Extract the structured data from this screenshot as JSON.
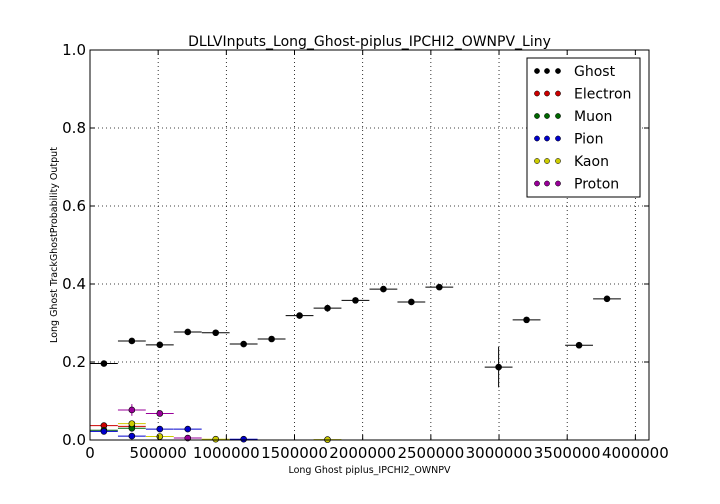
{
  "chart_data": {
    "type": "scatter",
    "title": "DLLVInputs_Long_Ghost-piplus_IPCHI2_OWNPV_Liny",
    "xlabel": "Long Ghost piplus_IPCHI2_OWNPV",
    "ylabel": "Long Ghost TrackGhostProbability Output",
    "xlim": [
      0,
      4100000
    ],
    "ylim": [
      0,
      1.0
    ],
    "xticks": [
      0,
      500000,
      1000000,
      1500000,
      2000000,
      2500000,
      3000000,
      3500000,
      4000000
    ],
    "xtick_labels": [
      "0",
      "500000",
      "1000000",
      "1500000",
      "2000000",
      "2500000",
      "3000000",
      "3500000",
      "4000000"
    ],
    "yticks": [
      0.0,
      0.2,
      0.4,
      0.6,
      0.8,
      1.0
    ],
    "ytick_labels": [
      "0.0",
      "0.2",
      "0.4",
      "0.6",
      "0.8",
      "1.0"
    ],
    "grid": true,
    "legend_position": "top-right",
    "series": [
      {
        "name": "Ghost",
        "color": "#000000",
        "points": [
          {
            "x": 102000,
            "y": 0.196,
            "xerr": 102000,
            "yerr": 0.002
          },
          {
            "x": 307000,
            "y": 0.254,
            "xerr": 102000,
            "yerr": 0.003
          },
          {
            "x": 512000,
            "y": 0.244,
            "xerr": 102000,
            "yerr": 0.004
          },
          {
            "x": 717000,
            "y": 0.277,
            "xerr": 102000,
            "yerr": 0.005
          },
          {
            "x": 922000,
            "y": 0.275,
            "xerr": 102000,
            "yerr": 0.005
          },
          {
            "x": 1127000,
            "y": 0.246,
            "xerr": 102000,
            "yerr": 0.006
          },
          {
            "x": 1332000,
            "y": 0.259,
            "xerr": 102000,
            "yerr": 0.007
          },
          {
            "x": 1537000,
            "y": 0.319,
            "xerr": 102000,
            "yerr": 0.005
          },
          {
            "x": 1742000,
            "y": 0.338,
            "xerr": 102000,
            "yerr": 0.009
          },
          {
            "x": 1947000,
            "y": 0.358,
            "xerr": 102000,
            "yerr": 0.004
          },
          {
            "x": 2152000,
            "y": 0.387,
            "xerr": 102000,
            "yerr": 0.004
          },
          {
            "x": 2357000,
            "y": 0.354,
            "xerr": 102000,
            "yerr": 0.004
          },
          {
            "x": 2562000,
            "y": 0.392,
            "xerr": 102000,
            "yerr": 0.004
          },
          {
            "x": 2997000,
            "y": 0.187,
            "xerr": 102000,
            "yerr": 0.052
          },
          {
            "x": 3202000,
            "y": 0.308,
            "xerr": 102000,
            "yerr": 0.004
          },
          {
            "x": 3587000,
            "y": 0.243,
            "xerr": 102000,
            "yerr": 0.004
          },
          {
            "x": 3792000,
            "y": 0.362,
            "xerr": 102000,
            "yerr": 0.004
          }
        ]
      },
      {
        "name": "Electron",
        "color": "#cc0000",
        "points": [
          {
            "x": 102000,
            "y": 0.037,
            "xerr": 102000,
            "yerr": 0.004
          },
          {
            "x": 307000,
            "y": 0.035,
            "xerr": 102000,
            "yerr": 0.006
          }
        ]
      },
      {
        "name": "Muon",
        "color": "#006600",
        "points": [
          {
            "x": 102000,
            "y": 0.025,
            "xerr": 102000,
            "yerr": 0.003
          },
          {
            "x": 307000,
            "y": 0.03,
            "xerr": 102000,
            "yerr": 0.005
          }
        ]
      },
      {
        "name": "Pion",
        "color": "#0000cc",
        "points": [
          {
            "x": 102000,
            "y": 0.022,
            "xerr": 102000,
            "yerr": 0.002
          },
          {
            "x": 307000,
            "y": 0.01,
            "xerr": 102000,
            "yerr": 0.002
          },
          {
            "x": 512000,
            "y": 0.028,
            "xerr": 102000,
            "yerr": 0.003
          },
          {
            "x": 717000,
            "y": 0.028,
            "xerr": 102000,
            "yerr": 0.003
          },
          {
            "x": 1127000,
            "y": 0.002,
            "xerr": 102000,
            "yerr": 0.001
          }
        ]
      },
      {
        "name": "Kaon",
        "color": "#cccc00",
        "points": [
          {
            "x": 307000,
            "y": 0.042,
            "xerr": 102000,
            "yerr": 0.006
          },
          {
            "x": 512000,
            "y": 0.009,
            "xerr": 102000,
            "yerr": 0.003
          },
          {
            "x": 922000,
            "y": 0.002,
            "xerr": 102000,
            "yerr": 0.001
          },
          {
            "x": 1742000,
            "y": 0.001,
            "xerr": 102000,
            "yerr": 0.001
          }
        ]
      },
      {
        "name": "Proton",
        "color": "#990099",
        "points": [
          {
            "x": 307000,
            "y": 0.077,
            "xerr": 102000,
            "yerr": 0.015
          },
          {
            "x": 512000,
            "y": 0.068,
            "xerr": 102000,
            "yerr": 0.004
          },
          {
            "x": 717000,
            "y": 0.005,
            "xerr": 102000,
            "yerr": 0.002
          }
        ]
      }
    ]
  }
}
